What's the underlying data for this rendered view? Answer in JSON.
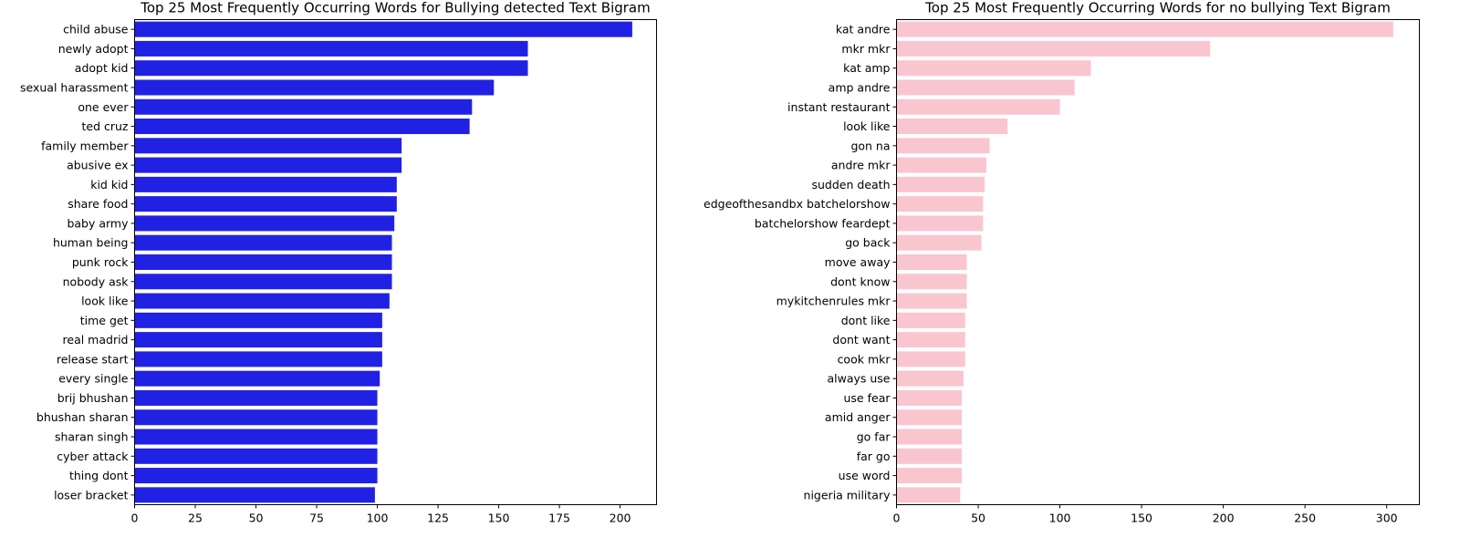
{
  "chart_data": [
    {
      "type": "bar",
      "orientation": "horizontal",
      "title": "Top 25 Most Frequently Occurring Words for Bullying detected Text Bigram",
      "xlabel": "",
      "ylabel": "",
      "color": "#2121e3",
      "xlim": [
        0,
        215
      ],
      "xticks": [
        0,
        25,
        50,
        75,
        100,
        125,
        150,
        175,
        200
      ],
      "grid": false,
      "categories": [
        "child abuse",
        "newly adopt",
        "adopt kid",
        "sexual harassment",
        "one ever",
        "ted cruz",
        "family member",
        "abusive ex",
        "kid kid",
        "share food",
        "baby army",
        "human being",
        "punk rock",
        "nobody ask",
        "look like",
        "time get",
        "real madrid",
        "release start",
        "every single",
        "brij bhushan",
        "bhushan sharan",
        "sharan singh",
        "cyber attack",
        "thing dont",
        "loser bracket"
      ],
      "values": [
        205,
        162,
        162,
        148,
        139,
        138,
        110,
        110,
        108,
        108,
        107,
        106,
        106,
        106,
        105,
        102,
        102,
        102,
        101,
        100,
        100,
        100,
        100,
        100,
        99
      ]
    },
    {
      "type": "bar",
      "orientation": "horizontal",
      "title": "Top 25 Most Frequently Occurring Words for no bullying Text Bigram",
      "xlabel": "",
      "ylabel": "",
      "color": "#f9c6d0",
      "xlim": [
        0,
        320
      ],
      "xticks": [
        0,
        50,
        100,
        150,
        200,
        250,
        300
      ],
      "grid": false,
      "categories": [
        "kat andre",
        "mkr mkr",
        "kat amp",
        "amp andre",
        "instant restaurant",
        "look like",
        "gon na",
        "andre mkr",
        "sudden death",
        "edgeofthesandbx batchelorshow",
        "batchelorshow feardept",
        "go back",
        "move away",
        "dont know",
        "mykitchenrules mkr",
        "dont like",
        "dont want",
        "cook mkr",
        "always use",
        "use fear",
        "amid anger",
        "go far",
        "far go",
        "use word",
        "nigeria military"
      ],
      "values": [
        304,
        192,
        119,
        109,
        100,
        68,
        57,
        55,
        54,
        53,
        53,
        52,
        43,
        43,
        43,
        42,
        42,
        42,
        41,
        40,
        40,
        40,
        40,
        40,
        39
      ]
    }
  ]
}
